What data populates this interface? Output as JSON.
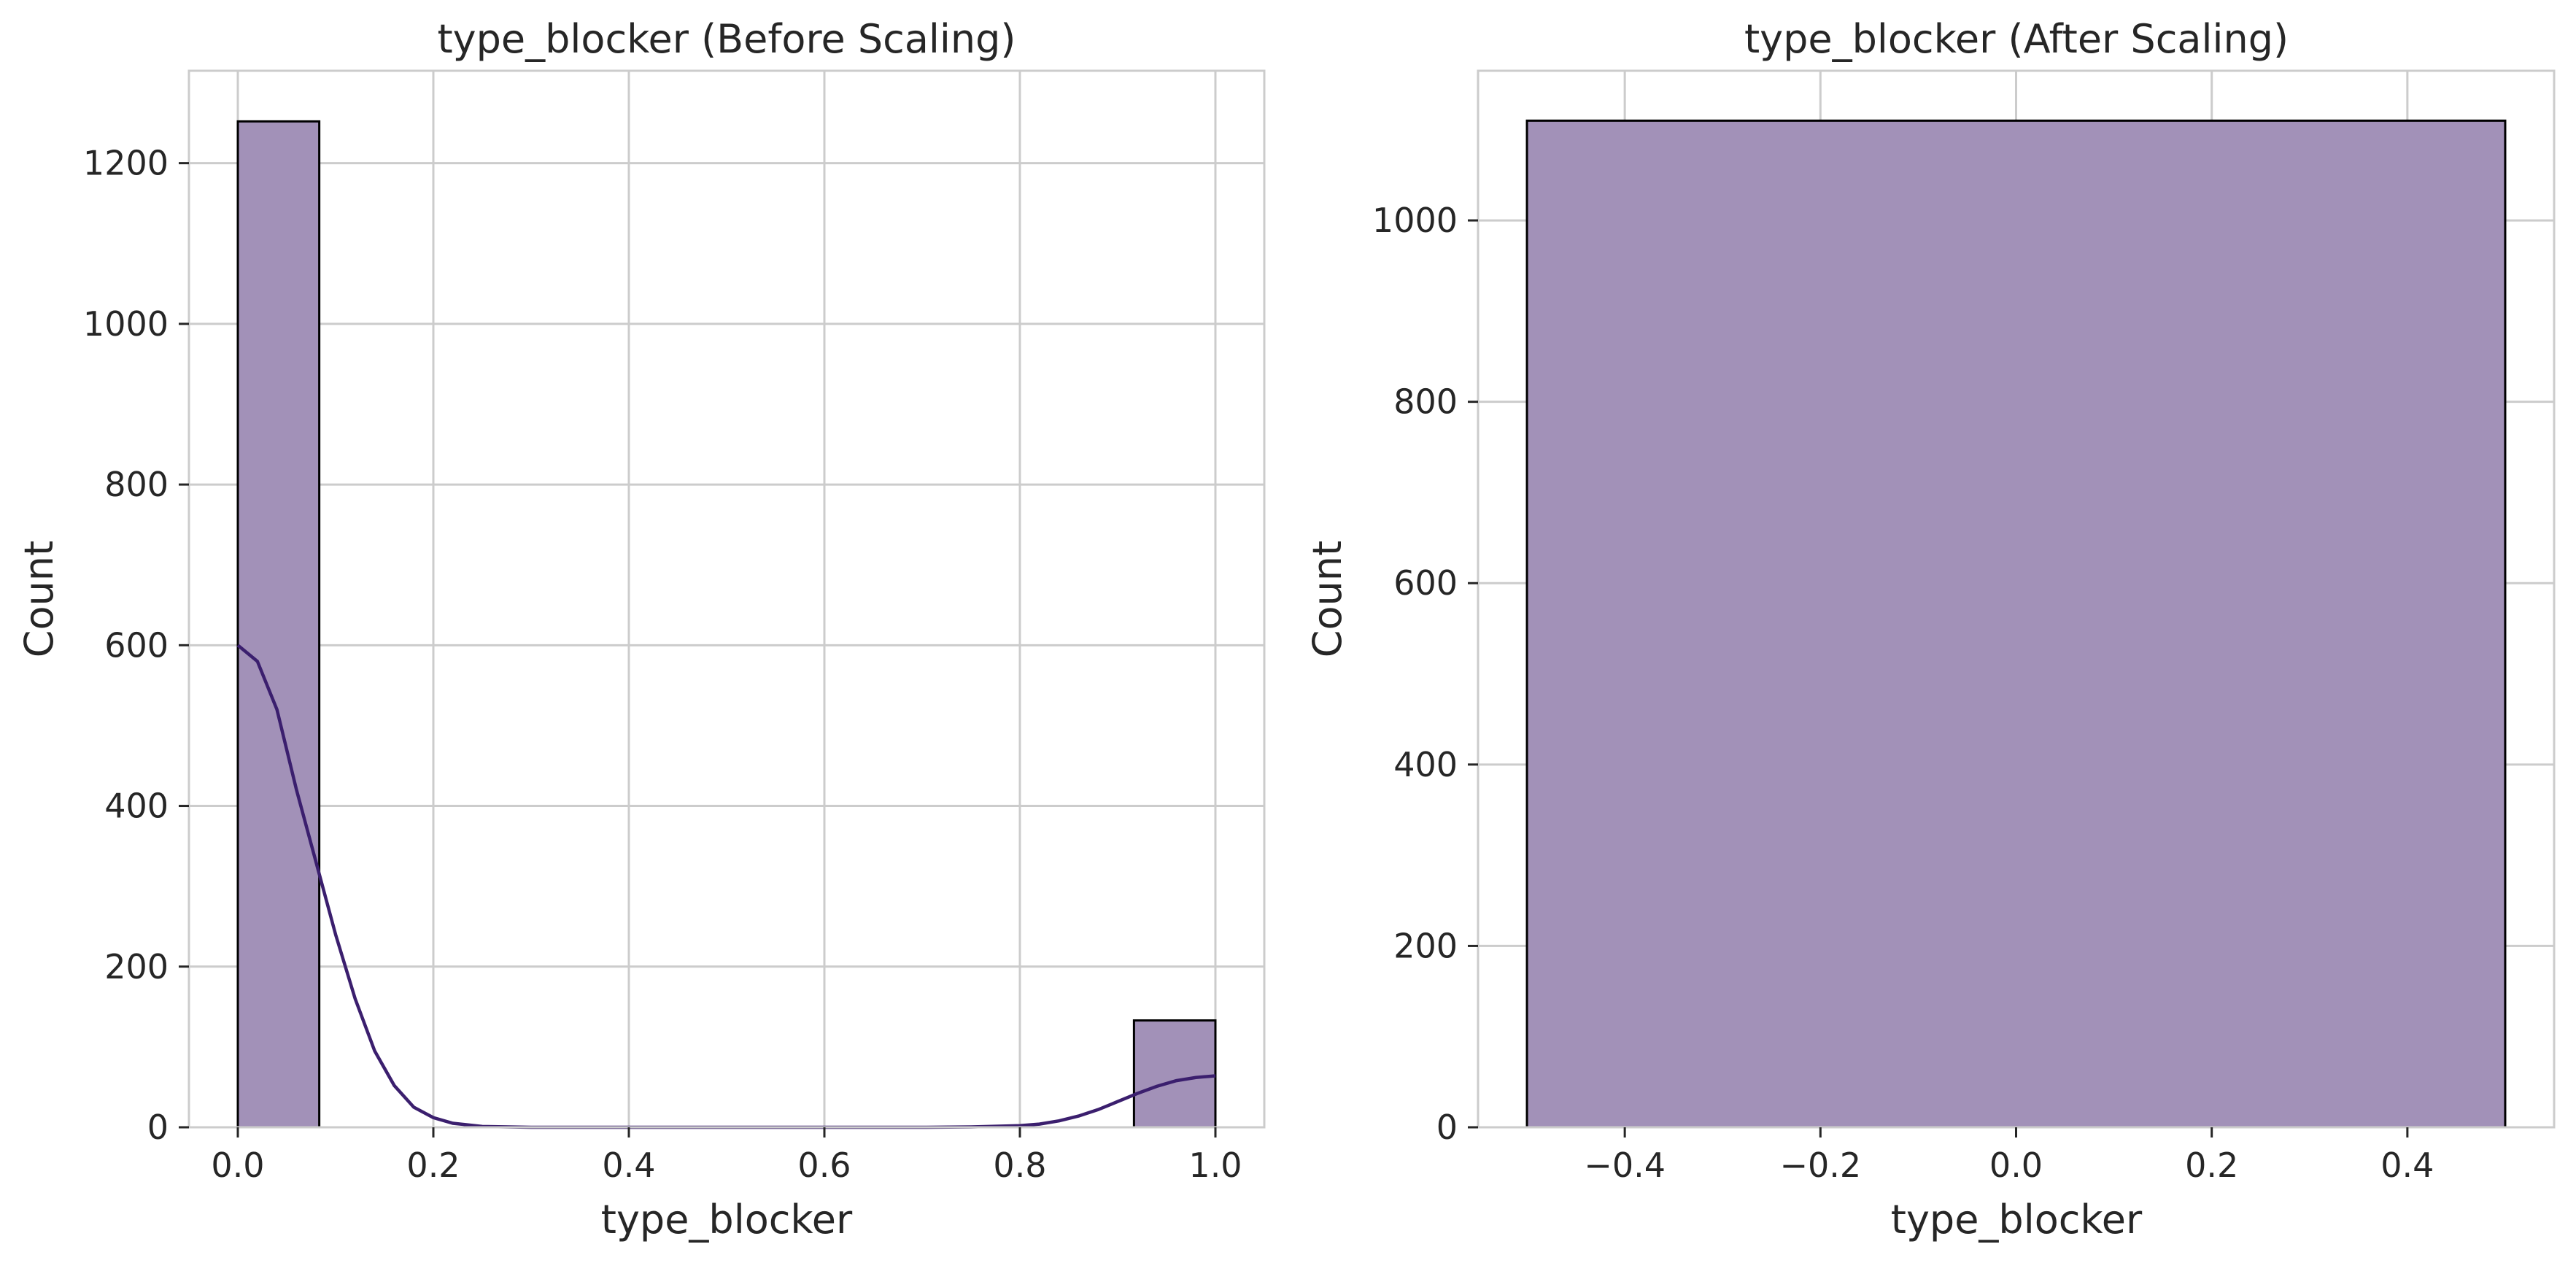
{
  "colors": {
    "bar_fill": "#a291b8",
    "bar_edge": "#000000",
    "kde_line": "#3b1f6e",
    "grid": "#cccccc",
    "spine": "#cccccc",
    "text": "#262626",
    "background": "#ffffff"
  },
  "chart_data": [
    {
      "type": "bar",
      "title": "type_blocker (Before Scaling)",
      "xlabel": "type_blocker",
      "ylabel": "Count",
      "xlim": [
        -0.05,
        1.05
      ],
      "ylim": [
        0,
        1315
      ],
      "grid": true,
      "xticks": [
        0.0,
        0.2,
        0.4,
        0.6,
        0.8,
        1.0
      ],
      "xtick_labels": [
        "0.0",
        "0.2",
        "0.4",
        "0.6",
        "0.8",
        "1.0"
      ],
      "yticks": [
        0,
        200,
        400,
        600,
        800,
        1000,
        1200
      ],
      "ytick_labels": [
        "0",
        "200",
        "400",
        "600",
        "800",
        "1000",
        "1200"
      ],
      "bins": [
        {
          "x0": 0.0,
          "x1": 0.0833,
          "value": 1252
        },
        {
          "x0": 0.9167,
          "x1": 1.0,
          "value": 133
        }
      ],
      "kde": {
        "name": "",
        "x": [
          0.0,
          0.02,
          0.04,
          0.06,
          0.08,
          0.1,
          0.12,
          0.14,
          0.16,
          0.18,
          0.2,
          0.22,
          0.25,
          0.3,
          0.4,
          0.5,
          0.6,
          0.7,
          0.75,
          0.8,
          0.82,
          0.84,
          0.86,
          0.88,
          0.9,
          0.92,
          0.94,
          0.96,
          0.98,
          1.0
        ],
        "y": [
          600,
          580,
          520,
          420,
          330,
          240,
          160,
          95,
          52,
          25,
          12,
          5,
          1,
          0,
          0,
          0,
          0,
          0,
          0.5,
          2,
          4,
          8,
          14,
          22,
          32,
          42,
          51,
          58,
          62,
          64
        ]
      }
    },
    {
      "type": "bar",
      "title": "type_blocker (After Scaling)",
      "xlabel": "type_blocker",
      "ylabel": "Count",
      "xlim": [
        -0.55,
        0.55
      ],
      "ylim": [
        0,
        1165
      ],
      "grid": true,
      "xticks": [
        -0.4,
        -0.2,
        0.0,
        0.2,
        0.4
      ],
      "xtick_labels": [
        "−0.4",
        "−0.2",
        "0.0",
        "0.2",
        "0.4"
      ],
      "yticks": [
        0,
        200,
        400,
        600,
        800,
        1000
      ],
      "ytick_labels": [
        "0",
        "200",
        "400",
        "600",
        "800",
        "1000"
      ],
      "bins": [
        {
          "x0": -0.5,
          "x1": 0.5,
          "value": 1110
        }
      ]
    }
  ]
}
